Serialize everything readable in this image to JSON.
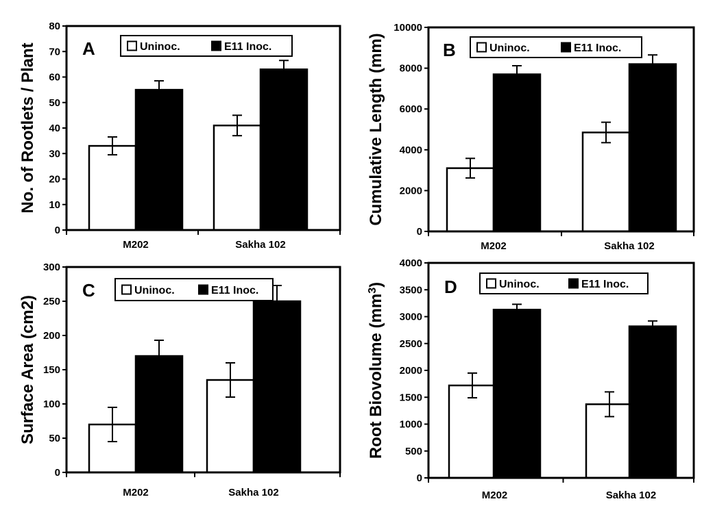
{
  "chart_data": [
    {
      "panel": "A",
      "type": "bar",
      "ylabel": "No. of Rootlets / Plant",
      "ylabel_super": "",
      "categories": [
        "M202",
        "Sakha 102"
      ],
      "series": [
        {
          "name": "Uninoc.",
          "values": [
            33,
            41
          ],
          "errors": [
            3.5,
            4
          ],
          "color": "#ffffff"
        },
        {
          "name": "E11 Inoc.",
          "values": [
            55,
            63
          ],
          "errors": [
            3.5,
            3.5
          ],
          "color": "#000000"
        }
      ],
      "ylim": [
        0,
        80
      ],
      "yticks": [
        0,
        10,
        20,
        30,
        40,
        50,
        60,
        70,
        80
      ],
      "legend": "top"
    },
    {
      "panel": "B",
      "type": "bar",
      "ylabel": "Cumulative Length (mm)",
      "ylabel_super": "",
      "categories": [
        "M202",
        "Sakha 102"
      ],
      "series": [
        {
          "name": "Uninoc.",
          "values": [
            3100,
            4850
          ],
          "errors": [
            480,
            500
          ],
          "color": "#ffffff"
        },
        {
          "name": "E11 Inoc.",
          "values": [
            7700,
            8200
          ],
          "errors": [
            420,
            450
          ],
          "color": "#000000"
        }
      ],
      "ylim": [
        0,
        10000
      ],
      "yticks": [
        0,
        2000,
        4000,
        6000,
        8000,
        10000
      ],
      "legend": "top"
    },
    {
      "panel": "C",
      "type": "bar",
      "ylabel": "Surface Area (cm2)",
      "ylabel_super": "",
      "categories": [
        "M202",
        "Sakha 102"
      ],
      "series": [
        {
          "name": "Uninoc.",
          "values": [
            70,
            135
          ],
          "errors": [
            25,
            25
          ],
          "color": "#ffffff"
        },
        {
          "name": "E11 Inoc.",
          "values": [
            170,
            250
          ],
          "errors": [
            23,
            23
          ],
          "color": "#000000"
        }
      ],
      "ylim": [
        0,
        300
      ],
      "yticks": [
        0,
        50,
        100,
        150,
        200,
        250,
        300
      ],
      "legend": "top"
    },
    {
      "panel": "D",
      "type": "bar",
      "ylabel": "Root Biovolume (mm",
      "ylabel_super": "3",
      "ylabel_end": ")",
      "categories": [
        "M202",
        "Sakha 102"
      ],
      "series": [
        {
          "name": "Uninoc.",
          "values": [
            1720,
            1370
          ],
          "errors": [
            230,
            230
          ],
          "color": "#ffffff"
        },
        {
          "name": "E11 Inoc.",
          "values": [
            3130,
            2820
          ],
          "errors": [
            100,
            100
          ],
          "color": "#000000"
        }
      ],
      "ylim": [
        0,
        4000
      ],
      "yticks": [
        0,
        500,
        1000,
        1500,
        2000,
        2500,
        3000,
        3500,
        4000
      ],
      "legend": "top"
    }
  ]
}
